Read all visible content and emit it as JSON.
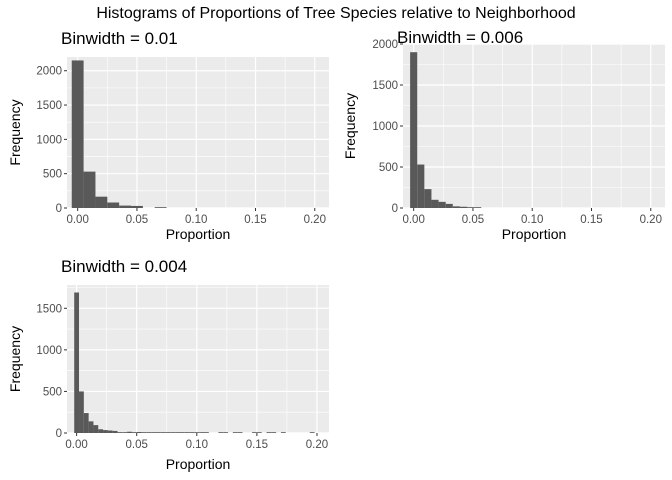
{
  "figure": {
    "title": "Histograms of Proportions of Tree Species relative to Neighborhood",
    "colors": {
      "panel_bg": "#ebebeb",
      "grid": "#ffffff",
      "bar_fill": "#595959",
      "tick_text": "#4d4d4d"
    }
  },
  "chart_data": [
    {
      "type": "bar",
      "title": "Binwidth = 0.01",
      "xlabel": "Proportion",
      "ylabel": "Frequency",
      "xlim": [
        -0.009,
        0.212
      ],
      "ylim": [
        0,
        2200
      ],
      "xticks": [
        0.0,
        0.05,
        0.1,
        0.15,
        0.2
      ],
      "xtick_labels": [
        "0.00",
        "0.05",
        "0.10",
        "0.15",
        "0.20"
      ],
      "yticks": [
        0,
        500,
        1000,
        1500,
        2000
      ],
      "ytick_labels": [
        "0",
        "500",
        "1000",
        "1500",
        "2000"
      ],
      "grid": true,
      "binwidth": 0.01,
      "bins": [
        {
          "x0": -0.005,
          "x1": 0.005,
          "value": 2150
        },
        {
          "x0": 0.005,
          "x1": 0.015,
          "value": 530
        },
        {
          "x0": 0.015,
          "x1": 0.025,
          "value": 165
        },
        {
          "x0": 0.025,
          "x1": 0.035,
          "value": 80
        },
        {
          "x0": 0.035,
          "x1": 0.045,
          "value": 35
        },
        {
          "x0": 0.045,
          "x1": 0.055,
          "value": 30
        },
        {
          "x0": 0.065,
          "x1": 0.075,
          "value": 10
        }
      ]
    },
    {
      "type": "bar",
      "title": "Binwidth = 0.006",
      "xlabel": "Proportion",
      "ylabel": "Frequency",
      "xlim": [
        -0.009,
        0.212
      ],
      "ylim": [
        0,
        2000
      ],
      "xticks": [
        0.0,
        0.05,
        0.1,
        0.15,
        0.2
      ],
      "xtick_labels": [
        "0.00",
        "0.05",
        "0.10",
        "0.15",
        "0.20"
      ],
      "yticks": [
        0,
        500,
        1000,
        1500,
        2000
      ],
      "ytick_labels": [
        "0",
        "500",
        "1000",
        "1500",
        "2000"
      ],
      "grid": true,
      "binwidth": 0.006,
      "bins": [
        {
          "x0": -0.003,
          "x1": 0.003,
          "value": 1900
        },
        {
          "x0": 0.003,
          "x1": 0.009,
          "value": 530
        },
        {
          "x0": 0.009,
          "x1": 0.015,
          "value": 230
        },
        {
          "x0": 0.015,
          "x1": 0.021,
          "value": 100
        },
        {
          "x0": 0.021,
          "x1": 0.027,
          "value": 75
        },
        {
          "x0": 0.027,
          "x1": 0.033,
          "value": 50
        },
        {
          "x0": 0.033,
          "x1": 0.039,
          "value": 20
        },
        {
          "x0": 0.039,
          "x1": 0.045,
          "value": 15
        },
        {
          "x0": 0.045,
          "x1": 0.051,
          "value": 10
        },
        {
          "x0": 0.051,
          "x1": 0.057,
          "value": 10
        }
      ]
    },
    {
      "type": "bar",
      "title": "Binwidth = 0.004",
      "xlabel": "Proportion",
      "ylabel": "Frequency",
      "xlim": [
        -0.008,
        0.21
      ],
      "ylim": [
        0,
        1780
      ],
      "xticks": [
        0.0,
        0.05,
        0.1,
        0.15,
        0.2
      ],
      "xtick_labels": [
        "0.00",
        "0.05",
        "0.10",
        "0.15",
        "0.20"
      ],
      "yticks": [
        0,
        500,
        1000,
        1500
      ],
      "ytick_labels": [
        "0",
        "500",
        "1000",
        "1500"
      ],
      "grid": true,
      "binwidth": 0.004,
      "bins": [
        {
          "x0": -0.002,
          "x1": 0.002,
          "value": 1690
        },
        {
          "x0": 0.002,
          "x1": 0.006,
          "value": 500
        },
        {
          "x0": 0.006,
          "x1": 0.01,
          "value": 240
        },
        {
          "x0": 0.01,
          "x1": 0.014,
          "value": 140
        },
        {
          "x0": 0.014,
          "x1": 0.018,
          "value": 95
        },
        {
          "x0": 0.018,
          "x1": 0.022,
          "value": 45
        },
        {
          "x0": 0.022,
          "x1": 0.026,
          "value": 35
        },
        {
          "x0": 0.026,
          "x1": 0.03,
          "value": 30
        },
        {
          "x0": 0.03,
          "x1": 0.034,
          "value": 25
        },
        {
          "x0": 0.034,
          "x1": 0.038,
          "value": 10
        },
        {
          "x0": 0.038,
          "x1": 0.042,
          "value": 8
        },
        {
          "x0": 0.042,
          "x1": 0.046,
          "value": 15
        },
        {
          "x0": 0.046,
          "x1": 0.05,
          "value": 10
        },
        {
          "x0": 0.05,
          "x1": 0.054,
          "value": 12
        },
        {
          "x0": 0.054,
          "x1": 0.058,
          "value": 8
        },
        {
          "x0": 0.058,
          "x1": 0.062,
          "value": 6
        },
        {
          "x0": 0.062,
          "x1": 0.066,
          "value": 6
        },
        {
          "x0": 0.066,
          "x1": 0.07,
          "value": 6
        },
        {
          "x0": 0.07,
          "x1": 0.074,
          "value": 6
        },
        {
          "x0": 0.074,
          "x1": 0.078,
          "value": 5
        },
        {
          "x0": 0.078,
          "x1": 0.082,
          "value": 5
        },
        {
          "x0": 0.082,
          "x1": 0.086,
          "value": 5
        },
        {
          "x0": 0.086,
          "x1": 0.09,
          "value": 5
        },
        {
          "x0": 0.09,
          "x1": 0.094,
          "value": 5
        },
        {
          "x0": 0.094,
          "x1": 0.098,
          "value": 5
        },
        {
          "x0": 0.098,
          "x1": 0.102,
          "value": 5
        },
        {
          "x0": 0.102,
          "x1": 0.106,
          "value": 5
        },
        {
          "x0": 0.106,
          "x1": 0.11,
          "value": 5
        },
        {
          "x0": 0.118,
          "x1": 0.122,
          "value": 5
        },
        {
          "x0": 0.122,
          "x1": 0.126,
          "value": 5
        },
        {
          "x0": 0.13,
          "x1": 0.134,
          "value": 5
        },
        {
          "x0": 0.134,
          "x1": 0.138,
          "value": 5
        },
        {
          "x0": 0.146,
          "x1": 0.15,
          "value": 5
        },
        {
          "x0": 0.15,
          "x1": 0.154,
          "value": 5
        },
        {
          "x0": 0.158,
          "x1": 0.162,
          "value": 5
        },
        {
          "x0": 0.162,
          "x1": 0.166,
          "value": 5
        },
        {
          "x0": 0.17,
          "x1": 0.174,
          "value": 5
        },
        {
          "x0": 0.194,
          "x1": 0.198,
          "value": 5
        }
      ]
    }
  ]
}
